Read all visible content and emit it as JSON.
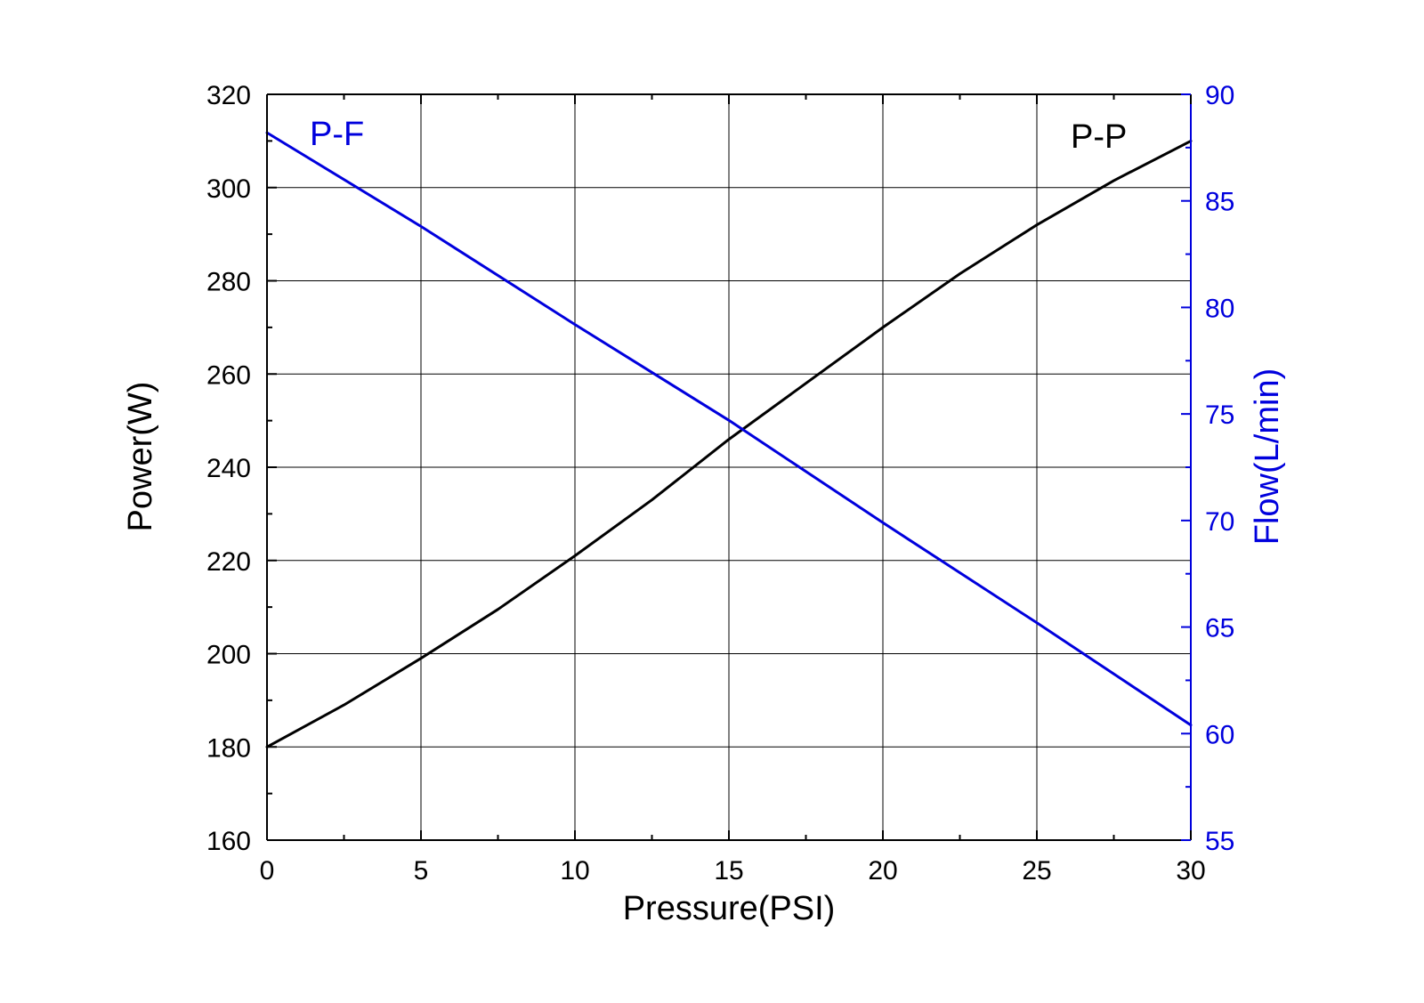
{
  "chart_data": {
    "type": "line",
    "title": "",
    "xlabel": "Pressure(PSI)",
    "ylabel": "Power(W)",
    "y2label": "Flow(L/min)",
    "xlim": [
      0,
      30
    ],
    "ylim": [
      160,
      320
    ],
    "y2lim": [
      55,
      90
    ],
    "x_ticks": [
      0,
      5,
      10,
      15,
      20,
      25,
      30
    ],
    "y_ticks": [
      160,
      180,
      200,
      220,
      240,
      260,
      280,
      300,
      320
    ],
    "y2_ticks": [
      55,
      60,
      65,
      70,
      75,
      80,
      85,
      90
    ],
    "grid": true,
    "series": [
      {
        "name": "P-P",
        "axis": "left",
        "color": "#000000",
        "x": [
          0,
          2.5,
          5,
          7.5,
          10,
          12.5,
          15,
          17.5,
          20,
          22.5,
          25,
          27.5,
          30
        ],
        "values": [
          180,
          189,
          199,
          209.5,
          221,
          233,
          246,
          258,
          270,
          281.5,
          292,
          301.5,
          310
        ]
      },
      {
        "name": "P-F",
        "axis": "right",
        "color": "#0000dd",
        "x": [
          0,
          5,
          10,
          15,
          20,
          25,
          30
        ],
        "values": [
          88.2,
          83.8,
          79.2,
          74.7,
          69.9,
          65.2,
          60.4
        ]
      }
    ],
    "annotations": [
      {
        "text": "P-F",
        "color": "#0000dd"
      },
      {
        "text": "P-P",
        "color": "#000000"
      }
    ],
    "colors": {
      "left_axis": "#000000",
      "right_axis": "#0000dd",
      "grid": "#000000"
    }
  }
}
